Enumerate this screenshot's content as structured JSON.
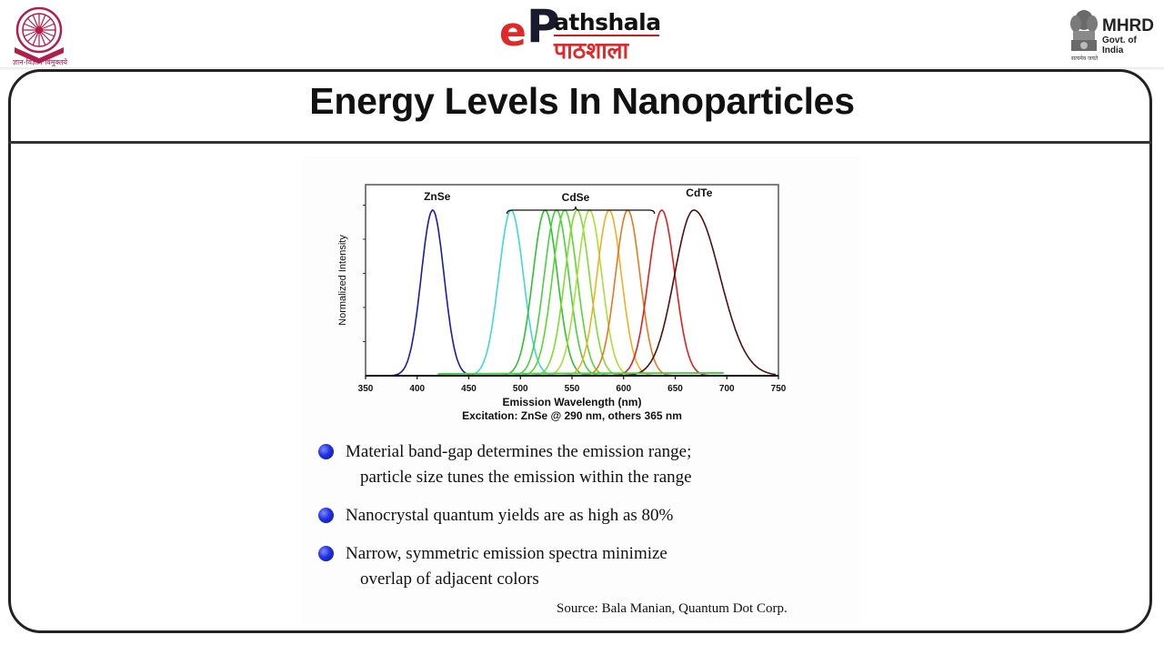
{
  "header": {
    "left_logo": {
      "name": "UGC emblem",
      "caption": "ज्ञान-विज्ञान विमुक्तये"
    },
    "center_logo": {
      "e_glyph": "e",
      "p_glyph": "P",
      "latin": "athshala",
      "hindi": "पाठशाला"
    },
    "right_logo": {
      "title": "MHRD",
      "subtitle": "Govt. of India",
      "motto": "सत्यमेव जयते"
    }
  },
  "slide": {
    "title": "Energy Levels In Nanoparticles",
    "bullets": [
      {
        "line1": "Material band-gap determines the emission range;",
        "line2": "particle size tunes the emission within the range"
      },
      {
        "line1": "Nanocrystal quantum yields are as high as 80%",
        "line2": ""
      },
      {
        "line1": "Narrow, symmetric emission spectra minimize",
        "line2": "overlap of adjacent colors"
      }
    ],
    "source": "Source: Bala Manian, Quantum Dot Corp."
  },
  "chart_data": {
    "type": "line",
    "title": "",
    "xlabel": "Emission Wavelength (nm)",
    "xlabel_sub": "Excitation: ZnSe @ 290 nm, others 365 nm",
    "ylabel": "Normalized Intensity",
    "xlim": [
      350,
      750
    ],
    "ylim": [
      0,
      1
    ],
    "x_ticks": [
      350,
      400,
      450,
      500,
      550,
      600,
      650,
      700,
      750
    ],
    "grid": false,
    "annotations": [
      {
        "text": "ZnSe",
        "x": 415
      },
      {
        "text": "CdSe",
        "x": 550,
        "bracket_range": [
          487,
          637
        ]
      },
      {
        "text": "CdTe",
        "x": 660
      }
    ],
    "series": [
      {
        "name": "ZnSe",
        "material": "ZnSe",
        "peak_nm": 415,
        "fwhm_nm": 26,
        "peak_intensity": 1.0,
        "color": "#1a1ab0"
      },
      {
        "name": "CdSe 1",
        "material": "CdSe",
        "peak_nm": 491,
        "fwhm_nm": 28,
        "peak_intensity": 1.0,
        "color": "#3fd8d8"
      },
      {
        "name": "CdSe 2",
        "material": "CdSe",
        "peak_nm": 524,
        "fwhm_nm": 28,
        "peak_intensity": 1.0,
        "color": "#30c030"
      },
      {
        "name": "CdSe 3",
        "material": "CdSe",
        "peak_nm": 535,
        "fwhm_nm": 28,
        "peak_intensity": 1.0,
        "color": "#48d040"
      },
      {
        "name": "CdSe 4",
        "material": "CdSe",
        "peak_nm": 543,
        "fwhm_nm": 28,
        "peak_intensity": 1.0,
        "color": "#5ad830"
      },
      {
        "name": "CdSe 5",
        "material": "CdSe",
        "peak_nm": 555,
        "fwhm_nm": 28,
        "peak_intensity": 1.0,
        "color": "#80dc30"
      },
      {
        "name": "CdSe 6",
        "material": "CdSe",
        "peak_nm": 567,
        "fwhm_nm": 28,
        "peak_intensity": 1.0,
        "color": "#a8e038"
      },
      {
        "name": "CdSe 7",
        "material": "CdSe",
        "peak_nm": 586,
        "fwhm_nm": 28,
        "peak_intensity": 1.0,
        "color": "#f0b020"
      },
      {
        "name": "CdSe 8",
        "material": "CdSe",
        "peak_nm": 604,
        "fwhm_nm": 28,
        "peak_intensity": 1.0,
        "color": "#e87820"
      },
      {
        "name": "CdSe 9",
        "material": "CdSe",
        "peak_nm": 637,
        "fwhm_nm": 30,
        "peak_intensity": 1.0,
        "color": "#e02020"
      },
      {
        "name": "CdTe",
        "material": "CdTe",
        "peak_nm": 668,
        "fwhm_nm": 44,
        "peak_intensity": 1.0,
        "color": "#501010"
      }
    ]
  }
}
